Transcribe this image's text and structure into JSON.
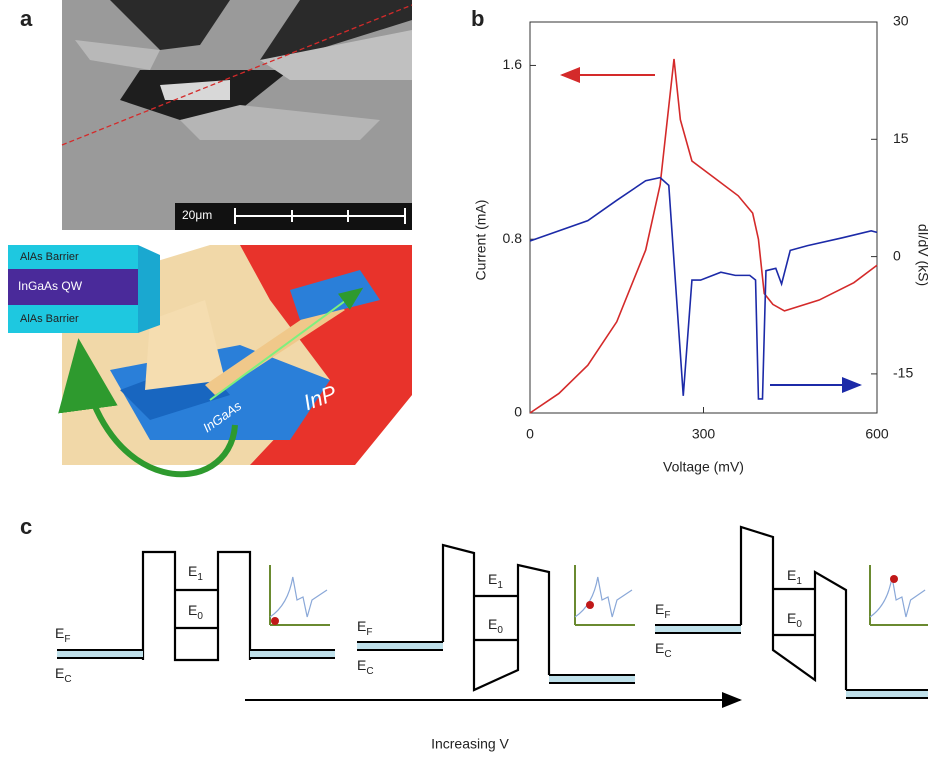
{
  "labels": [
    "a",
    "b",
    "c"
  ],
  "panel_a": {
    "scale_bar": "20μm",
    "layers": [
      "AlAs Barrier",
      "InGaAs QW",
      "AlAs Barrier"
    ],
    "materials": [
      "InGaAs",
      "InP"
    ]
  },
  "chart_data": {
    "type": "line",
    "x_label": "Voltage (mV)",
    "y_label": "Current (mA)",
    "y2_label": "dI/dV (kS)",
    "xlim": [
      0,
      600
    ],
    "xticks": [
      0,
      300,
      600
    ],
    "ylim": [
      0,
      1.8
    ],
    "yticks": [
      0,
      0.8,
      1.6
    ],
    "y2lim": [
      -20,
      30
    ],
    "y2ticks": [
      -15,
      0,
      15,
      30
    ],
    "series": [
      {
        "color": "#d42a2a",
        "x": [
          0,
          50,
          100,
          150,
          200,
          225,
          249,
          260,
          280,
          320,
          360,
          385,
          395,
          405,
          420,
          440,
          500,
          560,
          600
        ],
        "values": [
          0,
          0.09,
          0.22,
          0.42,
          0.75,
          1.05,
          1.63,
          1.35,
          1.16,
          1.08,
          1.0,
          0.92,
          0.8,
          0.55,
          0.5,
          0.47,
          0.52,
          0.6,
          0.68
        ]
      },
      {
        "color": "#1c2aa8",
        "axis": "y2",
        "x": [
          0,
          100,
          150,
          200,
          225,
          240,
          265,
          280,
          295,
          330,
          355,
          380,
          390,
          395,
          402,
          408,
          425,
          435,
          450,
          480,
          540,
          590,
          600
        ],
        "values": [
          2,
          4.6,
          7.2,
          9.7,
          10.1,
          9.1,
          -17.8,
          -3,
          -3,
          -2,
          -2.4,
          -2.4,
          -3,
          -18.2,
          -18.2,
          -1.8,
          -1.5,
          -3.5,
          0.8,
          1.4,
          2.4,
          3.3,
          3.1
        ]
      }
    ]
  },
  "panel_c": {
    "arrow_label": "Increasing V",
    "diagrams": [
      {
        "fermi": {
          "symbol": "E",
          "sub": "F"
        },
        "conduction": {
          "symbol": "E",
          "sub": "C"
        },
        "levels": [
          {
            "symbol": "E",
            "sub": "1"
          },
          {
            "symbol": "E",
            "sub": "0"
          }
        ]
      },
      {
        "fermi": {
          "symbol": "E",
          "sub": "F"
        },
        "conduction": {
          "symbol": "E",
          "sub": "C"
        },
        "levels": [
          {
            "symbol": "E",
            "sub": "1"
          },
          {
            "symbol": "E",
            "sub": "0"
          }
        ]
      },
      {
        "fermi": {
          "symbol": "E",
          "sub": "F"
        },
        "conduction": {
          "symbol": "E",
          "sub": "C"
        },
        "levels": [
          {
            "symbol": "E",
            "sub": "1"
          },
          {
            "symbol": "E",
            "sub": "0"
          }
        ]
      }
    ]
  }
}
